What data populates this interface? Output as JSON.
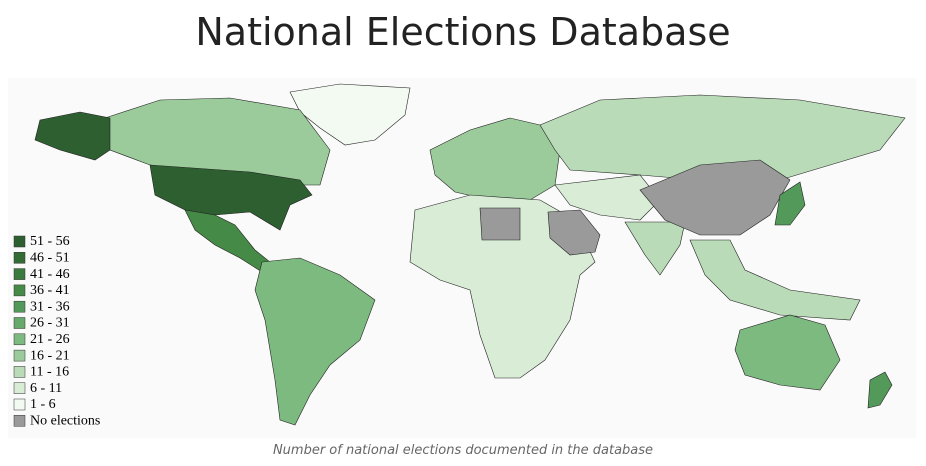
{
  "header": {
    "title": "National Elections Database"
  },
  "legend": {
    "items": [
      {
        "label": "51 - 56",
        "color": "#2d5f30"
      },
      {
        "label": "46 - 51",
        "color": "#336b35"
      },
      {
        "label": "41 - 46",
        "color": "#3b7a3d"
      },
      {
        "label": "36 - 41",
        "color": "#458a47"
      },
      {
        "label": "31 - 36",
        "color": "#53995a"
      },
      {
        "label": "26 - 31",
        "color": "#66a96a"
      },
      {
        "label": "21 - 26",
        "color": "#7dba80"
      },
      {
        "label": "16 - 21",
        "color": "#9bcb9b"
      },
      {
        "label": "11 - 16",
        "color": "#b9dbb8"
      },
      {
        "label": "6 - 11",
        "color": "#d8ecd6"
      },
      {
        "label": "1 - 6",
        "color": "#f3faf2"
      },
      {
        "label": "No elections",
        "color": "#9a9a9a"
      }
    ]
  },
  "caption": "Number of national elections documented in the database"
}
